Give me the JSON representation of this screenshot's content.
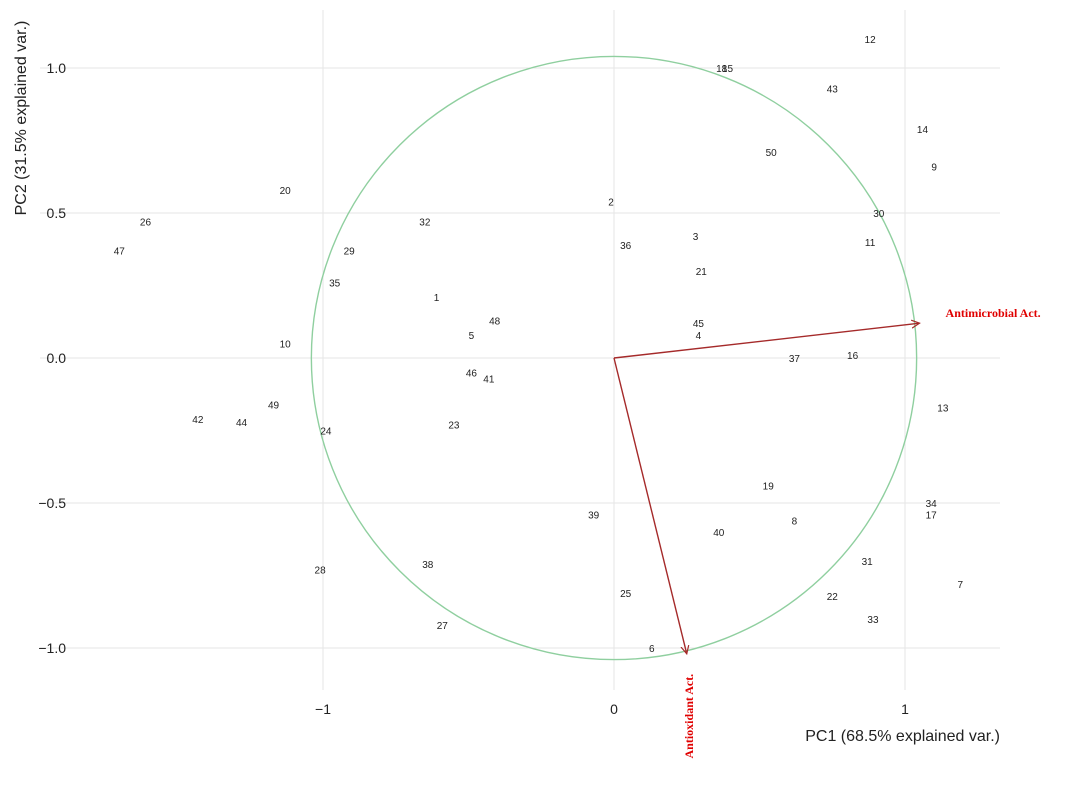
{
  "chart_data": {
    "type": "scatter",
    "title": "",
    "xlabel": "PC1 (68.5% explained var.)",
    "ylabel": "PC2 (31.5% explained var.)",
    "xlim": [
      -2.05,
      1.3
    ],
    "ylim": [
      -1.1,
      1.2
    ],
    "xticks": [
      -1,
      0,
      1
    ],
    "xtick_labels": [
      "−1",
      "0",
      "1"
    ],
    "yticks": [
      -1.0,
      -0.5,
      0.0,
      0.5,
      1.0
    ],
    "ytick_labels": [
      "−1.0",
      "−0.5",
      "0.0",
      "0.5",
      "1.0"
    ],
    "grid": true,
    "circle": {
      "center": [
        0,
        0
      ],
      "radius": 1.04,
      "color": "#8fcf9f"
    },
    "points": [
      {
        "label": "1",
        "x": -0.61,
        "y": 0.21
      },
      {
        "label": "2",
        "x": -0.01,
        "y": 0.54
      },
      {
        "label": "3",
        "x": 0.28,
        "y": 0.42
      },
      {
        "label": "4",
        "x": 0.29,
        "y": 0.08
      },
      {
        "label": "5",
        "x": -0.49,
        "y": 0.08
      },
      {
        "label": "6",
        "x": 0.13,
        "y": -1.0
      },
      {
        "label": "7",
        "x": 1.19,
        "y": -0.78
      },
      {
        "label": "8",
        "x": 0.62,
        "y": -0.56
      },
      {
        "label": "9",
        "x": 1.1,
        "y": 0.66
      },
      {
        "label": "10",
        "x": -1.13,
        "y": 0.05
      },
      {
        "label": "11",
        "x": 0.88,
        "y": 0.4
      },
      {
        "label": "12",
        "x": 0.88,
        "y": 1.1
      },
      {
        "label": "13",
        "x": 1.13,
        "y": -0.17
      },
      {
        "label": "14",
        "x": 1.06,
        "y": 0.79
      },
      {
        "label": "15",
        "x": 0.39,
        "y": 1.0
      },
      {
        "label": "16",
        "x": 0.82,
        "y": 0.01
      },
      {
        "label": "17",
        "x": 1.09,
        "y": -0.54
      },
      {
        "label": "18",
        "x": 0.37,
        "y": 1.0
      },
      {
        "label": "19",
        "x": 0.53,
        "y": -0.44
      },
      {
        "label": "20",
        "x": -1.13,
        "y": 0.58
      },
      {
        "label": "21",
        "x": 0.3,
        "y": 0.3
      },
      {
        "label": "22",
        "x": 0.75,
        "y": -0.82
      },
      {
        "label": "23",
        "x": -0.55,
        "y": -0.23
      },
      {
        "label": "24",
        "x": -0.99,
        "y": -0.25
      },
      {
        "label": "25",
        "x": 0.04,
        "y": -0.81
      },
      {
        "label": "26",
        "x": -1.61,
        "y": 0.47
      },
      {
        "label": "27",
        "x": -0.59,
        "y": -0.92
      },
      {
        "label": "28",
        "x": -1.01,
        "y": -0.73
      },
      {
        "label": "29",
        "x": -0.91,
        "y": 0.37
      },
      {
        "label": "30",
        "x": 0.91,
        "y": 0.5
      },
      {
        "label": "31",
        "x": 0.87,
        "y": -0.7
      },
      {
        "label": "32",
        "x": -0.65,
        "y": 0.47
      },
      {
        "label": "33",
        "x": 0.89,
        "y": -0.9
      },
      {
        "label": "34",
        "x": 1.09,
        "y": -0.5
      },
      {
        "label": "35",
        "x": -0.96,
        "y": 0.26
      },
      {
        "label": "36",
        "x": 0.04,
        "y": 0.39
      },
      {
        "label": "37",
        "x": 0.62,
        "y": 0.0
      },
      {
        "label": "38",
        "x": -0.64,
        "y": -0.71
      },
      {
        "label": "39",
        "x": -0.07,
        "y": -0.54
      },
      {
        "label": "40",
        "x": 0.36,
        "y": -0.6
      },
      {
        "label": "41",
        "x": -0.43,
        "y": -0.07
      },
      {
        "label": "42",
        "x": -1.43,
        "y": -0.21
      },
      {
        "label": "43",
        "x": 0.75,
        "y": 0.93
      },
      {
        "label": "44",
        "x": -1.28,
        "y": -0.22
      },
      {
        "label": "45",
        "x": 0.29,
        "y": 0.12
      },
      {
        "label": "46",
        "x": -0.49,
        "y": -0.05
      },
      {
        "label": "47",
        "x": -1.7,
        "y": 0.37
      },
      {
        "label": "48",
        "x": -0.41,
        "y": 0.13
      },
      {
        "label": "49",
        "x": -1.17,
        "y": -0.16
      },
      {
        "label": "50",
        "x": 0.54,
        "y": 0.71
      }
    ],
    "vectors": [
      {
        "name": "Antimicrobial Act.",
        "x": 1.05,
        "y": 0.12,
        "color": "#a52a2a",
        "label_color": "#e00000"
      },
      {
        "name": "Antioxidant Act.",
        "x": 0.25,
        "y": -1.02,
        "color": "#a52a2a",
        "label_color": "#e00000"
      }
    ]
  }
}
